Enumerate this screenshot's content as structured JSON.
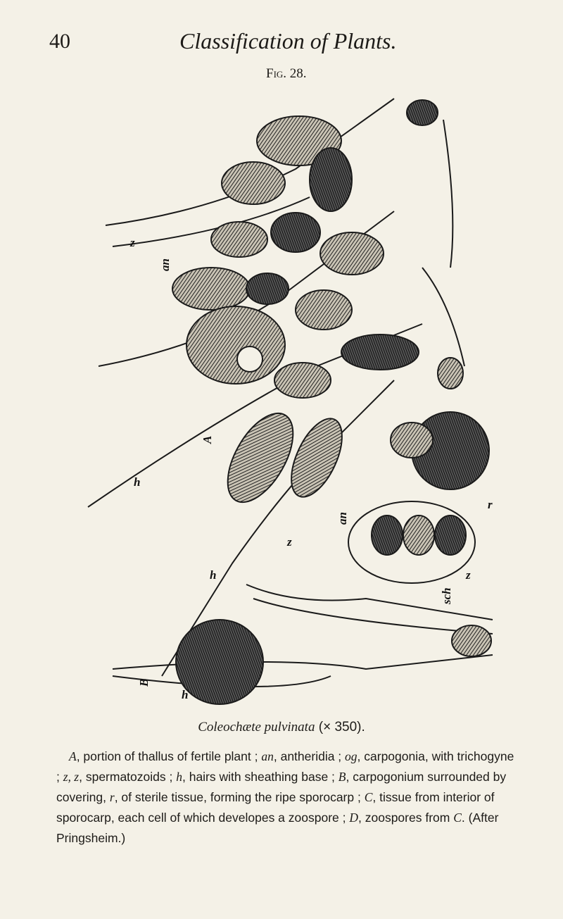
{
  "header": {
    "page_number": "40",
    "title": "Classification of Plants."
  },
  "figure": {
    "number": "Fig. 28.",
    "labels": [
      "z",
      "an",
      "A",
      "h",
      "z",
      "an",
      "h",
      "B",
      "h",
      "r",
      "z",
      "sch"
    ]
  },
  "caption": {
    "title": "Coleochæte pulvinata",
    "magnification": "(× 350).",
    "paragraph": [
      "A",
      ", portion of thallus of fertile plant ; ",
      "an",
      ", antheridia ; ",
      "og",
      ", carpogonia, with trichogyne ; ",
      "z, z",
      ", spermatozoids ; ",
      "h",
      ", hairs with sheathing base ; ",
      "B",
      ", carpogonium surrounded by covering, ",
      "r",
      ", of sterile tissue, forming the ripe sporocarp ; ",
      "C",
      ", tissue from interior of sporocarp, each cell of which developes a zoospore ; ",
      "D",
      ", zoospores from ",
      "C",
      ".  (After Pringsheim.)"
    ]
  }
}
